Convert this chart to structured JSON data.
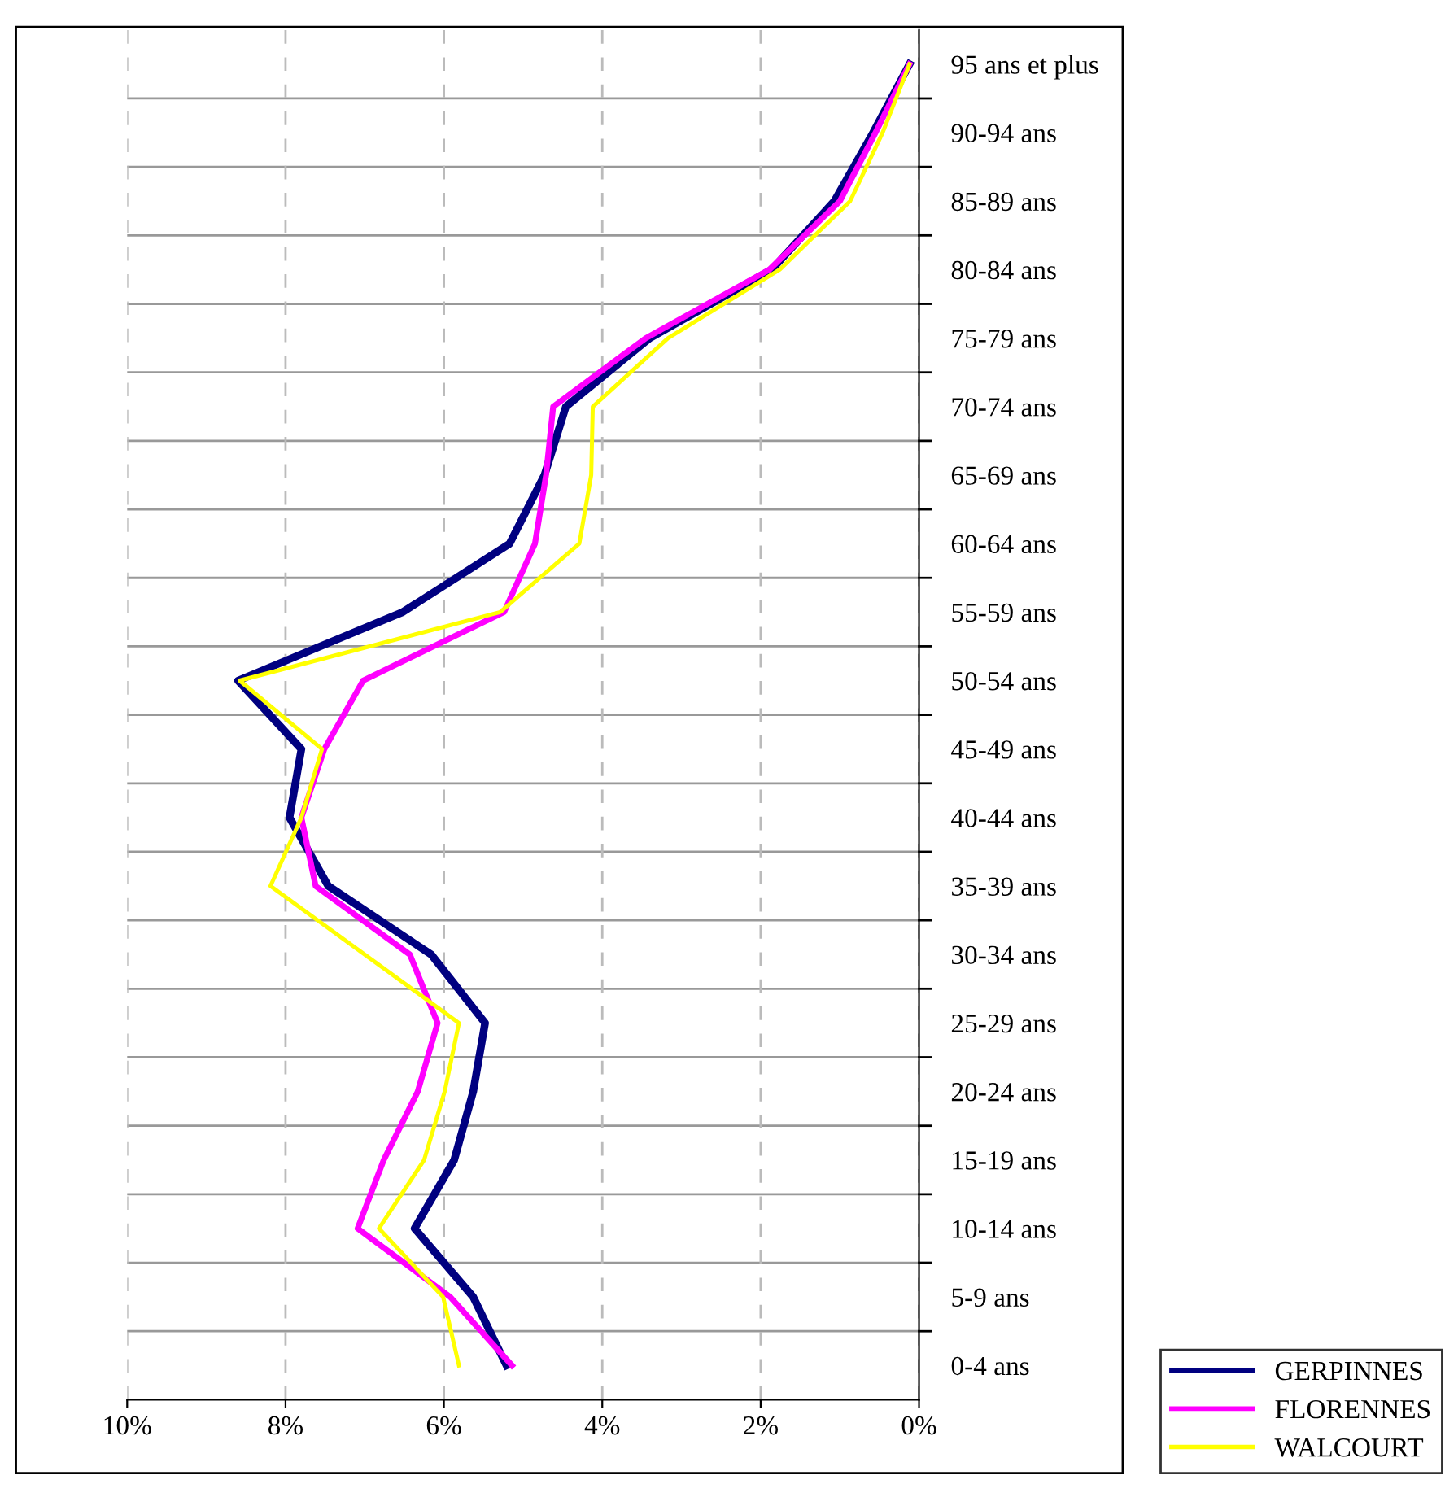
{
  "chart_data": {
    "type": "line",
    "orientation": "horizontal",
    "categories": [
      "95 ans et plus",
      "90-94 ans",
      "85-89 ans",
      "80-84 ans",
      "75-79 ans",
      "70-74 ans",
      "65-69 ans",
      "60-64 ans",
      "55-59 ans",
      "50-54 ans",
      "45-49 ans",
      "40-44 ans",
      "35-39 ans",
      "30-34 ans",
      "25-29 ans",
      "20-24 ans",
      "15-19 ans",
      "10-14 ans",
      "5-9 ans",
      "0-4 ans"
    ],
    "series": [
      {
        "name": "GERPINNES",
        "color": "#000080",
        "values": [
          0.12,
          0.58,
          1.07,
          1.86,
          3.4,
          4.46,
          4.73,
          5.17,
          6.52,
          8.6,
          7.8,
          7.95,
          7.46,
          6.16,
          5.48,
          5.63,
          5.87,
          6.37,
          5.63,
          5.21
        ]
      },
      {
        "name": "FLORENNES",
        "color": "#ff00ff",
        "values": [
          0.12,
          0.55,
          1.0,
          1.89,
          3.45,
          4.62,
          4.71,
          4.85,
          5.24,
          7.02,
          7.51,
          7.8,
          7.62,
          6.43,
          6.08,
          6.33,
          6.76,
          7.09,
          5.92,
          5.14
        ]
      },
      {
        "name": "WALCOURT",
        "color": "#ffff00",
        "values": [
          0.12,
          0.46,
          0.87,
          1.76,
          3.17,
          4.12,
          4.14,
          4.29,
          5.29,
          8.58,
          7.54,
          7.8,
          8.19,
          7.0,
          5.81,
          5.99,
          6.25,
          6.82,
          6.01,
          5.81
        ]
      }
    ],
    "xlim": [
      10,
      0
    ],
    "xticks": [
      {
        "value": 10,
        "label": "10%"
      },
      {
        "value": 8,
        "label": "8%"
      },
      {
        "value": 6,
        "label": "6%"
      },
      {
        "value": 4,
        "label": "4%"
      },
      {
        "value": 2,
        "label": "2%"
      },
      {
        "value": 0,
        "label": "0%"
      }
    ],
    "grid": true,
    "legend": "bottom right",
    "marker": "none",
    "line_style": "solid"
  }
}
